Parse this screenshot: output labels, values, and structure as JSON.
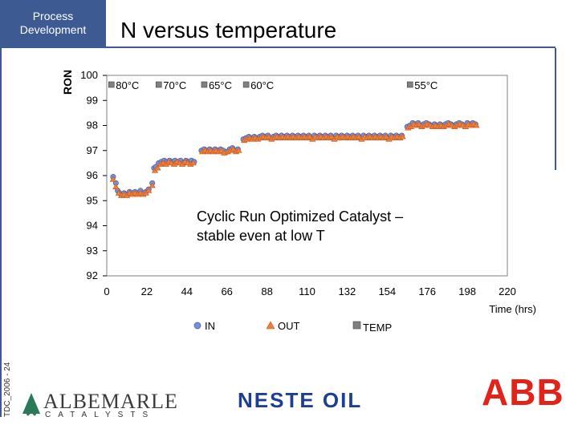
{
  "header": {
    "tag_line1": "Process",
    "tag_line2": "Development",
    "title": "N versus temperature"
  },
  "footer": {
    "code": "TDC_2006 - 24",
    "logo_albemarle": "ALBEMARLE",
    "logo_albemarle_sub": "CATALYSTS",
    "logo_neste": "NESTE OIL",
    "logo_abb": "ABB"
  },
  "colors": {
    "brand": "#3d5a93",
    "in_series": "#7b8fd4",
    "out_series": "#f07e3a",
    "temp_series": "#808080",
    "abb_red": "#e2231a",
    "neste_blue": "#1c3f94"
  },
  "chart_data": {
    "type": "scatter",
    "title": "",
    "xlabel": "Time (hrs)",
    "ylabel": "RON",
    "xlim": [
      0,
      220
    ],
    "ylim": [
      92,
      100
    ],
    "xticks": [
      0,
      22,
      44,
      66,
      88,
      110,
      132,
      154,
      176,
      198,
      220
    ],
    "yticks": [
      92,
      93,
      94,
      95,
      96,
      97,
      98,
      99,
      100
    ],
    "grid": false,
    "legend": {
      "position": "bottom",
      "entries": [
        "IN",
        "OUT",
        "TEMP"
      ]
    },
    "temperature_labels": [
      {
        "label": "80°C",
        "x": 1
      },
      {
        "label": "70°C",
        "x": 27
      },
      {
        "label": "65°C",
        "x": 52
      },
      {
        "label": "60°C",
        "x": 75
      },
      {
        "label": "55°C",
        "x": 165
      }
    ],
    "annotation": "Cyclic Run Optimized Catalyst –\nstable even at low T",
    "series": [
      {
        "name": "IN",
        "marker": "circle",
        "points": [
          [
            3.5,
            95.95
          ],
          [
            5.0,
            95.7
          ],
          [
            6.0,
            95.4
          ],
          [
            7.0,
            95.3
          ],
          [
            8.0,
            95.25
          ],
          [
            9.5,
            95.3
          ],
          [
            11.0,
            95.25
          ],
          [
            12.5,
            95.35
          ],
          [
            14.0,
            95.3
          ],
          [
            15.5,
            95.35
          ],
          [
            17.0,
            95.3
          ],
          [
            18.5,
            95.4
          ],
          [
            20.0,
            95.3
          ],
          [
            21.5,
            95.35
          ],
          [
            23.0,
            95.45
          ],
          [
            25.0,
            95.7
          ],
          [
            26.0,
            96.3
          ],
          [
            27.0,
            96.35
          ],
          [
            28.5,
            96.5
          ],
          [
            30.0,
            96.55
          ],
          [
            31.5,
            96.6
          ],
          [
            33.0,
            96.55
          ],
          [
            34.5,
            96.6
          ],
          [
            36.0,
            96.55
          ],
          [
            37.5,
            96.6
          ],
          [
            39.0,
            96.55
          ],
          [
            40.5,
            96.6
          ],
          [
            42.0,
            96.5
          ],
          [
            43.5,
            96.6
          ],
          [
            45.0,
            96.55
          ],
          [
            46.5,
            96.6
          ],
          [
            48.0,
            96.55
          ],
          [
            52.0,
            97.0
          ],
          [
            53.5,
            97.05
          ],
          [
            55.0,
            97.0
          ],
          [
            56.5,
            97.05
          ],
          [
            58.0,
            97.0
          ],
          [
            59.5,
            97.05
          ],
          [
            61.0,
            97.0
          ],
          [
            62.5,
            97.05
          ],
          [
            64.0,
            97.0
          ],
          [
            66.0,
            96.95
          ],
          [
            67.5,
            97.05
          ],
          [
            69.0,
            97.1
          ],
          [
            70.5,
            97.0
          ],
          [
            72.0,
            97.05
          ],
          [
            75.0,
            97.45
          ],
          [
            76.5,
            97.5
          ],
          [
            78.0,
            97.55
          ],
          [
            79.5,
            97.5
          ],
          [
            81.0,
            97.55
          ],
          [
            82.5,
            97.5
          ],
          [
            84.0,
            97.55
          ],
          [
            85.5,
            97.6
          ],
          [
            87.0,
            97.55
          ],
          [
            88.5,
            97.6
          ],
          [
            90.0,
            97.5
          ],
          [
            91.5,
            97.55
          ],
          [
            93.0,
            97.6
          ],
          [
            94.5,
            97.55
          ],
          [
            96.0,
            97.6
          ],
          [
            97.5,
            97.55
          ],
          [
            99.0,
            97.6
          ],
          [
            100.5,
            97.55
          ],
          [
            102.0,
            97.6
          ],
          [
            103.5,
            97.55
          ],
          [
            105.0,
            97.6
          ],
          [
            106.5,
            97.55
          ],
          [
            108.0,
            97.6
          ],
          [
            109.5,
            97.55
          ],
          [
            111.0,
            97.6
          ],
          [
            112.5,
            97.5
          ],
          [
            114.0,
            97.6
          ],
          [
            115.5,
            97.55
          ],
          [
            117.0,
            97.6
          ],
          [
            118.5,
            97.55
          ],
          [
            120.0,
            97.6
          ],
          [
            121.5,
            97.55
          ],
          [
            123.0,
            97.6
          ],
          [
            124.5,
            97.5
          ],
          [
            126.0,
            97.6
          ],
          [
            127.5,
            97.55
          ],
          [
            129.0,
            97.6
          ],
          [
            130.5,
            97.55
          ],
          [
            132.0,
            97.6
          ],
          [
            133.5,
            97.55
          ],
          [
            135.0,
            97.6
          ],
          [
            136.5,
            97.55
          ],
          [
            138.0,
            97.6
          ],
          [
            139.5,
            97.5
          ],
          [
            141.0,
            97.6
          ],
          [
            142.5,
            97.55
          ],
          [
            144.0,
            97.6
          ],
          [
            145.5,
            97.55
          ],
          [
            147.0,
            97.6
          ],
          [
            148.5,
            97.55
          ],
          [
            150.0,
            97.6
          ],
          [
            151.5,
            97.55
          ],
          [
            153.0,
            97.6
          ],
          [
            154.5,
            97.5
          ],
          [
            156.0,
            97.6
          ],
          [
            157.5,
            97.55
          ],
          [
            159.0,
            97.6
          ],
          [
            160.5,
            97.55
          ],
          [
            162.0,
            97.6
          ],
          [
            165.0,
            97.95
          ],
          [
            166.5,
            98.0
          ],
          [
            168.0,
            98.1
          ],
          [
            169.5,
            98.05
          ],
          [
            171.0,
            98.1
          ],
          [
            172.5,
            98.0
          ],
          [
            174.0,
            98.05
          ],
          [
            175.5,
            98.1
          ],
          [
            177.0,
            98.05
          ],
          [
            178.5,
            98.0
          ],
          [
            180.0,
            98.05
          ],
          [
            181.5,
            98.0
          ],
          [
            183.0,
            98.05
          ],
          [
            184.5,
            98.0
          ],
          [
            186.0,
            98.05
          ],
          [
            187.5,
            98.1
          ],
          [
            189.0,
            98.05
          ],
          [
            190.5,
            98.0
          ],
          [
            192.0,
            98.05
          ],
          [
            193.5,
            98.1
          ],
          [
            195.0,
            98.05
          ],
          [
            196.5,
            98.0
          ],
          [
            198.0,
            98.1
          ],
          [
            199.5,
            98.05
          ],
          [
            201.0,
            98.1
          ],
          [
            202.5,
            98.05
          ]
        ]
      },
      {
        "name": "OUT",
        "marker": "triangle",
        "points": [
          [
            3.5,
            95.85
          ],
          [
            5.0,
            95.55
          ],
          [
            6.5,
            95.3
          ],
          [
            8.0,
            95.2
          ],
          [
            9.5,
            95.25
          ],
          [
            11.0,
            95.2
          ],
          [
            12.5,
            95.3
          ],
          [
            14.0,
            95.25
          ],
          [
            15.5,
            95.3
          ],
          [
            17.0,
            95.25
          ],
          [
            18.5,
            95.3
          ],
          [
            20.0,
            95.25
          ],
          [
            21.5,
            95.3
          ],
          [
            23.0,
            95.4
          ],
          [
            25.0,
            95.6
          ],
          [
            26.5,
            96.2
          ],
          [
            28.0,
            96.3
          ],
          [
            29.5,
            96.45
          ],
          [
            31.0,
            96.5
          ],
          [
            32.5,
            96.45
          ],
          [
            34.0,
            96.55
          ],
          [
            35.5,
            96.5
          ],
          [
            37.0,
            96.45
          ],
          [
            38.5,
            96.55
          ],
          [
            40.0,
            96.5
          ],
          [
            41.5,
            96.45
          ],
          [
            43.0,
            96.55
          ],
          [
            44.5,
            96.5
          ],
          [
            46.0,
            96.45
          ],
          [
            47.5,
            96.5
          ],
          [
            52.5,
            96.95
          ],
          [
            54.0,
            97.0
          ],
          [
            55.5,
            96.95
          ],
          [
            57.0,
            97.0
          ],
          [
            58.5,
            96.95
          ],
          [
            60.0,
            97.0
          ],
          [
            61.5,
            96.95
          ],
          [
            63.0,
            97.0
          ],
          [
            64.5,
            96.9
          ],
          [
            66.5,
            96.95
          ],
          [
            68.0,
            97.0
          ],
          [
            69.5,
            97.05
          ],
          [
            71.0,
            96.95
          ],
          [
            72.5,
            97.0
          ],
          [
            75.5,
            97.4
          ],
          [
            77.0,
            97.45
          ],
          [
            78.5,
            97.5
          ],
          [
            80.0,
            97.45
          ],
          [
            81.5,
            97.5
          ],
          [
            83.0,
            97.45
          ],
          [
            84.5,
            97.5
          ],
          [
            86.0,
            97.55
          ],
          [
            87.5,
            97.5
          ],
          [
            89.0,
            97.55
          ],
          [
            90.5,
            97.45
          ],
          [
            92.0,
            97.5
          ],
          [
            93.5,
            97.55
          ],
          [
            95.0,
            97.5
          ],
          [
            96.5,
            97.55
          ],
          [
            98.0,
            97.5
          ],
          [
            99.5,
            97.55
          ],
          [
            101.0,
            97.5
          ],
          [
            102.5,
            97.55
          ],
          [
            104.0,
            97.5
          ],
          [
            105.5,
            97.55
          ],
          [
            107.0,
            97.5
          ],
          [
            108.5,
            97.55
          ],
          [
            110.0,
            97.5
          ],
          [
            111.5,
            97.55
          ],
          [
            113.0,
            97.45
          ],
          [
            114.5,
            97.55
          ],
          [
            116.0,
            97.5
          ],
          [
            117.5,
            97.55
          ],
          [
            119.0,
            97.5
          ],
          [
            120.5,
            97.55
          ],
          [
            122.0,
            97.5
          ],
          [
            123.5,
            97.55
          ],
          [
            125.0,
            97.45
          ],
          [
            126.5,
            97.55
          ],
          [
            128.0,
            97.5
          ],
          [
            129.5,
            97.55
          ],
          [
            131.0,
            97.5
          ],
          [
            132.5,
            97.55
          ],
          [
            134.0,
            97.5
          ],
          [
            135.5,
            97.55
          ],
          [
            137.0,
            97.5
          ],
          [
            138.5,
            97.55
          ],
          [
            140.0,
            97.45
          ],
          [
            141.5,
            97.55
          ],
          [
            143.0,
            97.5
          ],
          [
            144.5,
            97.55
          ],
          [
            146.0,
            97.5
          ],
          [
            147.5,
            97.55
          ],
          [
            149.0,
            97.5
          ],
          [
            150.5,
            97.55
          ],
          [
            152.0,
            97.5
          ],
          [
            153.5,
            97.55
          ],
          [
            155.0,
            97.45
          ],
          [
            156.5,
            97.55
          ],
          [
            158.0,
            97.5
          ],
          [
            159.5,
            97.55
          ],
          [
            161.0,
            97.5
          ],
          [
            162.5,
            97.55
          ],
          [
            165.5,
            97.9
          ],
          [
            167.0,
            97.95
          ],
          [
            168.5,
            98.05
          ],
          [
            170.0,
            98.0
          ],
          [
            171.5,
            98.05
          ],
          [
            173.0,
            97.95
          ],
          [
            174.5,
            98.0
          ],
          [
            176.0,
            98.05
          ],
          [
            177.5,
            98.0
          ],
          [
            179.0,
            97.95
          ],
          [
            180.5,
            98.0
          ],
          [
            182.0,
            97.95
          ],
          [
            183.5,
            98.0
          ],
          [
            185.0,
            97.95
          ],
          [
            186.5,
            98.0
          ],
          [
            188.0,
            98.05
          ],
          [
            189.5,
            98.0
          ],
          [
            191.0,
            97.95
          ],
          [
            192.5,
            98.0
          ],
          [
            194.0,
            98.05
          ],
          [
            195.5,
            98.0
          ],
          [
            197.0,
            97.95
          ],
          [
            198.5,
            98.05
          ],
          [
            200.0,
            98.0
          ],
          [
            201.5,
            98.05
          ],
          [
            203.0,
            98.0
          ]
        ]
      },
      {
        "name": "TEMP",
        "marker": "square",
        "points": []
      }
    ]
  }
}
